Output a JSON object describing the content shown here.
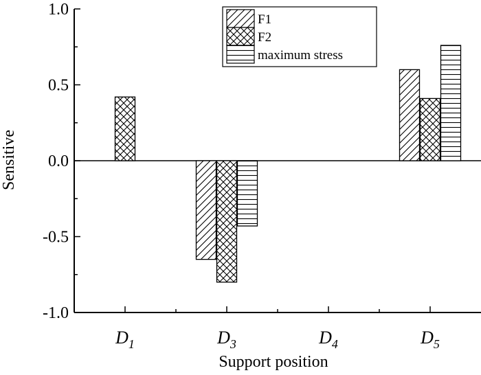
{
  "chart_data": {
    "type": "bar",
    "title": "",
    "xlabel": "Support position",
    "ylabel": "Sensitive",
    "ylim": [
      -1.0,
      1.0
    ],
    "yticks": [
      "1.0",
      "0.5",
      "0.0",
      "-0.5",
      "-1.0"
    ],
    "ytick_values": [
      1.0,
      0.5,
      0.0,
      -0.5,
      -1.0
    ],
    "categories": [
      {
        "base": "D",
        "sub": "1"
      },
      {
        "base": "D",
        "sub": "3"
      },
      {
        "base": "D",
        "sub": "4"
      },
      {
        "base": "D",
        "sub": "5"
      }
    ],
    "series": [
      {
        "name": "F1",
        "pattern": "diagonal-hatch",
        "values": [
          0.0,
          -0.65,
          0.0,
          0.6
        ]
      },
      {
        "name": "F2",
        "pattern": "cross-hatch",
        "values": [
          0.42,
          -0.8,
          0.0,
          0.41
        ]
      },
      {
        "name": "maximum stress",
        "pattern": "horizontal-lines",
        "values": [
          0.0,
          -0.43,
          0.0,
          0.76
        ]
      }
    ],
    "legend_position": "top-right",
    "grid": false
  }
}
